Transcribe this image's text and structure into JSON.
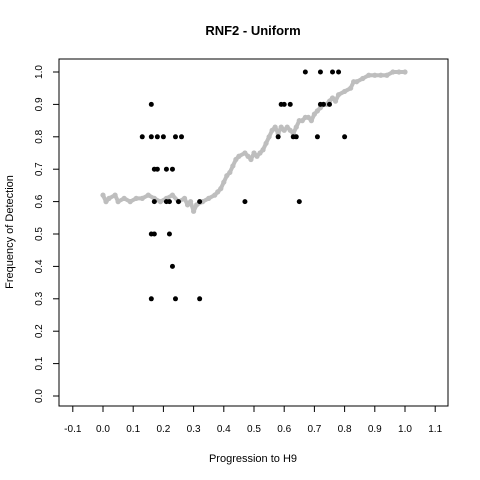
{
  "chart_data": {
    "type": "scatter",
    "title": "RNF2 - Uniform",
    "xlabel": "Progression to H9",
    "ylabel": "Frequency of Detection",
    "xlim": [
      -0.1,
      1.1
    ],
    "ylim": [
      0.0,
      1.0
    ],
    "x_ticks": [
      "-0.1",
      "0.0",
      "0.1",
      "0.2",
      "0.3",
      "0.4",
      "0.5",
      "0.6",
      "0.7",
      "0.8",
      "0.9",
      "1.0",
      "1.1"
    ],
    "y_ticks": [
      "0.0",
      "0.1",
      "0.2",
      "0.3",
      "0.4",
      "0.5",
      "0.6",
      "0.7",
      "0.8",
      "0.9",
      "1.0"
    ],
    "grid": false,
    "colors": {
      "points": "#000000",
      "trend": "#bebebe"
    },
    "series": [
      {
        "type": "scatter",
        "points": [
          [
            0.13,
            0.8
          ],
          [
            0.16,
            0.9
          ],
          [
            0.16,
            0.8
          ],
          [
            0.17,
            0.7
          ],
          [
            0.18,
            0.7
          ],
          [
            0.18,
            0.8
          ],
          [
            0.2,
            0.8
          ],
          [
            0.17,
            0.6
          ],
          [
            0.16,
            0.5
          ],
          [
            0.17,
            0.5
          ],
          [
            0.16,
            0.3
          ],
          [
            0.21,
            0.6
          ],
          [
            0.22,
            0.6
          ],
          [
            0.21,
            0.7
          ],
          [
            0.23,
            0.7
          ],
          [
            0.22,
            0.5
          ],
          [
            0.23,
            0.4
          ],
          [
            0.24,
            0.3
          ],
          [
            0.24,
            0.8
          ],
          [
            0.26,
            0.8
          ],
          [
            0.25,
            0.6
          ],
          [
            0.32,
            0.6
          ],
          [
            0.32,
            0.3
          ],
          [
            0.47,
            0.6
          ],
          [
            0.58,
            0.8
          ],
          [
            0.59,
            0.9
          ],
          [
            0.6,
            0.9
          ],
          [
            0.62,
            0.9
          ],
          [
            0.63,
            0.8
          ],
          [
            0.64,
            0.8
          ],
          [
            0.65,
            0.6
          ],
          [
            0.67,
            1.0
          ],
          [
            0.71,
            0.8
          ],
          [
            0.72,
            0.9
          ],
          [
            0.72,
            1.0
          ],
          [
            0.73,
            0.9
          ],
          [
            0.75,
            0.9
          ],
          [
            0.76,
            1.0
          ],
          [
            0.78,
            1.0
          ],
          [
            0.8,
            0.8
          ]
        ]
      },
      {
        "type": "trend",
        "points": [
          [
            0.0,
            0.62
          ],
          [
            0.01,
            0.6
          ],
          [
            0.02,
            0.61
          ],
          [
            0.04,
            0.62
          ],
          [
            0.05,
            0.6
          ],
          [
            0.07,
            0.61
          ],
          [
            0.09,
            0.6
          ],
          [
            0.11,
            0.61
          ],
          [
            0.13,
            0.61
          ],
          [
            0.15,
            0.62
          ],
          [
            0.17,
            0.61
          ],
          [
            0.19,
            0.6
          ],
          [
            0.21,
            0.61
          ],
          [
            0.23,
            0.62
          ],
          [
            0.25,
            0.6
          ],
          [
            0.27,
            0.61
          ],
          [
            0.28,
            0.59
          ],
          [
            0.29,
            0.6
          ],
          [
            0.3,
            0.57
          ],
          [
            0.31,
            0.59
          ],
          [
            0.33,
            0.6
          ],
          [
            0.35,
            0.61
          ],
          [
            0.37,
            0.62
          ],
          [
            0.38,
            0.63
          ],
          [
            0.39,
            0.64
          ],
          [
            0.4,
            0.66
          ],
          [
            0.41,
            0.68
          ],
          [
            0.42,
            0.69
          ],
          [
            0.43,
            0.71
          ],
          [
            0.44,
            0.73
          ],
          [
            0.45,
            0.74
          ],
          [
            0.47,
            0.75
          ],
          [
            0.48,
            0.74
          ],
          [
            0.49,
            0.73
          ],
          [
            0.5,
            0.75
          ],
          [
            0.51,
            0.74
          ],
          [
            0.52,
            0.75
          ],
          [
            0.53,
            0.76
          ],
          [
            0.54,
            0.78
          ],
          [
            0.55,
            0.8
          ],
          [
            0.56,
            0.82
          ],
          [
            0.57,
            0.83
          ],
          [
            0.58,
            0.81
          ],
          [
            0.59,
            0.83
          ],
          [
            0.6,
            0.82
          ],
          [
            0.61,
            0.83
          ],
          [
            0.62,
            0.82
          ],
          [
            0.63,
            0.81
          ],
          [
            0.64,
            0.83
          ],
          [
            0.65,
            0.85
          ],
          [
            0.66,
            0.85
          ],
          [
            0.67,
            0.86
          ],
          [
            0.68,
            0.86
          ],
          [
            0.69,
            0.85
          ],
          [
            0.7,
            0.87
          ],
          [
            0.71,
            0.88
          ],
          [
            0.72,
            0.89
          ],
          [
            0.73,
            0.9
          ],
          [
            0.74,
            0.9
          ],
          [
            0.75,
            0.91
          ],
          [
            0.76,
            0.92
          ],
          [
            0.77,
            0.91
          ],
          [
            0.78,
            0.93
          ],
          [
            0.8,
            0.94
          ],
          [
            0.82,
            0.95
          ],
          [
            0.83,
            0.97
          ],
          [
            0.84,
            0.97
          ],
          [
            0.86,
            0.98
          ],
          [
            0.88,
            0.99
          ],
          [
            0.9,
            0.99
          ],
          [
            0.92,
            0.99
          ],
          [
            0.94,
            0.99
          ],
          [
            0.96,
            1.0
          ],
          [
            0.98,
            1.0
          ],
          [
            1.0,
            1.0
          ]
        ]
      }
    ]
  }
}
